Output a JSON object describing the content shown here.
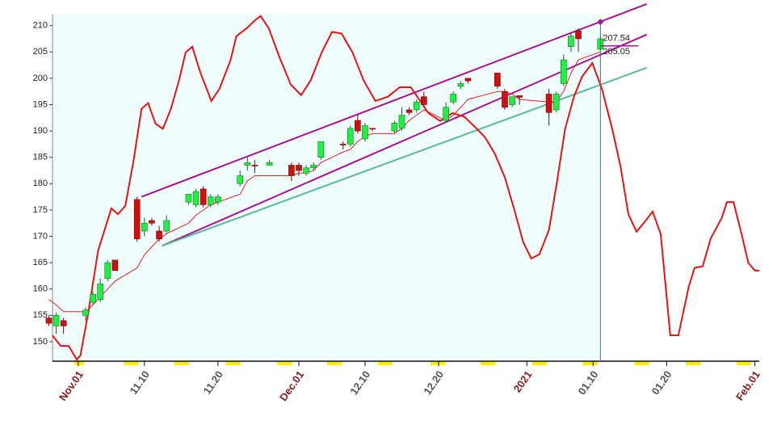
{
  "chart_data": {
    "type": "candlestick",
    "xlim": [
      -3.5,
      92.6
    ],
    "ylim": [
      146.3,
      212.1
    ],
    "yticks": [
      150,
      155,
      160,
      165,
      170,
      175,
      180,
      185,
      190,
      195,
      200,
      205,
      210
    ],
    "xticks": [
      {
        "value": 0,
        "label": "Nov.01"
      },
      {
        "value": 9,
        "label": "11.10"
      },
      {
        "value": 19,
        "label": "11.20"
      },
      {
        "value": 30,
        "label": "Dec.01"
      },
      {
        "value": 39,
        "label": "12.10"
      },
      {
        "value": 49,
        "label": "12.20"
      },
      {
        "value": 61,
        "label": "2021"
      },
      {
        "value": 70,
        "label": "01.10"
      },
      {
        "value": 80,
        "label": "01.20"
      },
      {
        "value": 92,
        "label": "Feb.01"
      }
    ],
    "up_color": "#22ee44",
    "down_color": "#cc1111",
    "shade_color": "#effdfd",
    "x": [
      -4,
      -3,
      -2,
      1,
      2,
      3,
      4,
      5,
      8,
      9,
      10,
      11,
      12,
      15,
      16,
      17,
      18,
      19,
      22,
      23,
      24,
      26,
      29,
      30,
      31,
      32,
      33,
      36,
      37,
      38,
      39,
      40,
      43,
      44,
      45,
      46,
      47,
      50,
      51,
      52,
      53,
      57,
      58,
      59,
      60,
      64,
      65,
      66,
      67,
      68,
      71
    ],
    "open": [
      154.5,
      153,
      154,
      155,
      157.5,
      158,
      162,
      165.5,
      177,
      171,
      173,
      171,
      171,
      176.5,
      176,
      179,
      176,
      176.5,
      180,
      183.5,
      183.5,
      183.5,
      183.5,
      183.5,
      182,
      183,
      185,
      187.5,
      187.5,
      192,
      188.5,
      190.5,
      190,
      190.5,
      194,
      194,
      196.5,
      192,
      195.5,
      198.5,
      200,
      201,
      197.5,
      195,
      196.7,
      197,
      194,
      199,
      206,
      209,
      205.5
    ],
    "high": [
      155,
      155.5,
      154.5,
      156.5,
      159.5,
      162,
      165.5,
      165.5,
      177.5,
      173.5,
      173.5,
      172,
      174,
      178,
      179,
      179.5,
      178,
      178,
      182.5,
      185,
      184.5,
      184.5,
      184,
      184,
      183.5,
      184,
      188,
      188,
      191,
      193,
      191.5,
      190.5,
      192,
      194.5,
      194.5,
      196,
      197.5,
      195.5,
      197.5,
      199.5,
      200,
      201,
      198,
      196.5,
      196.7,
      198,
      197.5,
      204.5,
      208.5,
      209.5,
      208
    ],
    "low": [
      153,
      151.5,
      151.5,
      154,
      157,
      157.5,
      161.5,
      163.5,
      169,
      170,
      172,
      169,
      170.5,
      176,
      175.5,
      175.5,
      175.5,
      176,
      179.5,
      182.5,
      182,
      183.5,
      180.5,
      181.5,
      181.5,
      182.5,
      184.5,
      186.5,
      187,
      189.5,
      188,
      190,
      189.5,
      190,
      193,
      193.5,
      194.5,
      191.5,
      195,
      198,
      199,
      198,
      194,
      194.5,
      195,
      191,
      193.5,
      198.5,
      205,
      205,
      205
    ],
    "close": [
      153.5,
      155,
      153,
      156,
      159,
      161,
      165,
      163.5,
      169.5,
      172.5,
      172.5,
      169.5,
      173,
      178,
      178.5,
      176,
      177.5,
      177.5,
      181.5,
      184,
      183.5,
      184,
      181.5,
      182.5,
      183,
      183.5,
      188,
      187.5,
      190.5,
      190,
      191,
      190.5,
      191.5,
      193,
      193.5,
      195.5,
      195,
      194.5,
      197,
      199,
      199.5,
      198.5,
      194.5,
      196.5,
      196.4,
      193.5,
      197,
      203.5,
      208,
      207.5,
      207.5
    ],
    "lines": [
      {
        "color": "#ee1111",
        "x": [
          -3.5,
          -2.4,
          -1.3,
          -0.2,
          0.3,
          1.4,
          2.7,
          4.5,
          5.4,
          6.4,
          7.5,
          8.6,
          9.5,
          10.5,
          11.5,
          12.6,
          13.7,
          14.6,
          15.5,
          16.6,
          18.1,
          19.2,
          20.7,
          21.5,
          22.9,
          24.1,
          24.8,
          25.9,
          27.3,
          28.9,
          30.3,
          31.6,
          33.1,
          34.5,
          35.8,
          37.3,
          38.8,
          40.4,
          42.1,
          43.7,
          45.2,
          46.5,
          47.6,
          49.2,
          50.9,
          52.5,
          54.2,
          55.3,
          56.6,
          58,
          59.3,
          60.5,
          61.6,
          62.7,
          64,
          65.1,
          66.2,
          67.4,
          68.5,
          69.9,
          71.2,
          72.6,
          73.7,
          74.8,
          75.9,
          77,
          78.1,
          79.2,
          80.5,
          81.6,
          83,
          83.8,
          84.9,
          86,
          87.5,
          88.2,
          89.1,
          90.2,
          91.1,
          92,
          92.6
        ],
        "values": [
          151.2,
          149.2,
          149.2,
          146.6,
          147.4,
          155.8,
          167.3,
          175.3,
          174.2,
          175.8,
          184.2,
          194.2,
          195.3,
          191.4,
          190.4,
          194.2,
          199.6,
          204.9,
          206,
          201.1,
          195.7,
          198,
          203.4,
          208,
          209.5,
          211.1,
          211.8,
          209.5,
          204.2,
          198.8,
          196.8,
          199.6,
          204.9,
          208.8,
          208.5,
          204.9,
          199.6,
          195.7,
          196.5,
          198.3,
          198.3,
          195.7,
          193.4,
          191.9,
          193.4,
          192.7,
          190.4,
          188.8,
          185.8,
          181.2,
          175,
          168.9,
          165.8,
          166.6,
          171.2,
          180.4,
          190.4,
          196.5,
          200.3,
          202.9,
          198,
          190.4,
          183.5,
          174.2,
          170.9,
          172.7,
          174.7,
          170.4,
          151.2,
          151.2,
          160.4,
          164,
          164.3,
          169.6,
          173.5,
          176.5,
          176.5,
          170.4,
          165,
          163.5,
          163.5
        ]
      },
      {
        "color": "#ee2222",
        "x": [
          -4,
          -3,
          -2,
          1,
          2,
          3,
          4,
          5,
          8,
          9,
          10,
          11,
          12,
          15,
          16,
          17,
          18,
          19,
          22,
          23,
          24,
          26,
          29,
          30,
          31,
          32,
          33,
          36,
          37,
          38,
          39,
          40,
          43,
          44,
          45,
          46,
          47,
          50,
          51,
          52,
          53,
          57,
          58,
          59,
          60,
          64,
          65,
          66,
          67,
          68,
          71
        ],
        "values": [
          158,
          157,
          155.7,
          155.7,
          157,
          158.5,
          160,
          161.5,
          164,
          166.5,
          168,
          169.5,
          170.5,
          172.5,
          174,
          175,
          176,
          176.5,
          178,
          180.5,
          181.5,
          181.5,
          181.5,
          182,
          182,
          182.5,
          184,
          186,
          186.5,
          188,
          189,
          189.5,
          189.5,
          190.5,
          192,
          193,
          194,
          192,
          193,
          194.5,
          196,
          197.5,
          197.5,
          197,
          196,
          195.5,
          195.5,
          197.5,
          201,
          203.5,
          205
        ]
      }
    ],
    "trend_lines": [
      {
        "color": "#aa1199",
        "x": [
          8.6,
          77.3
        ],
        "values": [
          177.5,
          214.1
        ]
      },
      {
        "color": "#aa1199",
        "x": [
          11.4,
          77.3
        ],
        "values": [
          168.2,
          208.3
        ]
      },
      {
        "color": "#55bb99",
        "x": [
          11.4,
          77.3
        ],
        "values": [
          168.2,
          202
        ]
      }
    ],
    "cursor": {
      "x": 71,
      "value": 210.7,
      "color": "#118888"
    },
    "price_labels": [
      207.54,
      205.05
    ]
  }
}
